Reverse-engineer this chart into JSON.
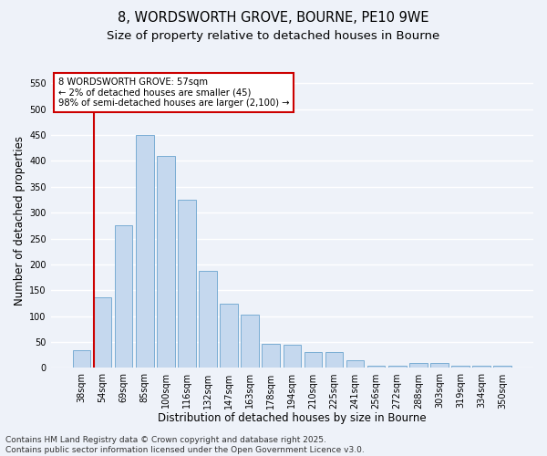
{
  "title_line1": "8, WORDSWORTH GROVE, BOURNE, PE10 9WE",
  "title_line2": "Size of property relative to detached houses in Bourne",
  "xlabel": "Distribution of detached houses by size in Bourne",
  "ylabel": "Number of detached properties",
  "categories": [
    "38sqm",
    "54sqm",
    "69sqm",
    "85sqm",
    "100sqm",
    "116sqm",
    "132sqm",
    "147sqm",
    "163sqm",
    "178sqm",
    "194sqm",
    "210sqm",
    "225sqm",
    "241sqm",
    "256sqm",
    "272sqm",
    "288sqm",
    "303sqm",
    "319sqm",
    "334sqm",
    "350sqm"
  ],
  "values": [
    35,
    137,
    275,
    450,
    410,
    325,
    188,
    125,
    103,
    47,
    45,
    30,
    30,
    15,
    5,
    5,
    10,
    10,
    5,
    4,
    4
  ],
  "bar_color": "#c5d8ee",
  "bar_edge_color": "#7aadd4",
  "highlight_bar_index": 1,
  "highlight_color": "#cc0000",
  "ylim": [
    0,
    570
  ],
  "yticks": [
    0,
    50,
    100,
    150,
    200,
    250,
    300,
    350,
    400,
    450,
    500,
    550
  ],
  "annotation_box_text": "8 WORDSWORTH GROVE: 57sqm\n← 2% of detached houses are smaller (45)\n98% of semi-detached houses are larger (2,100) →",
  "footnote_line1": "Contains HM Land Registry data © Crown copyright and database right 2025.",
  "footnote_line2": "Contains public sector information licensed under the Open Government Licence v3.0.",
  "background_color": "#eef2f9",
  "grid_color": "#ffffff",
  "title_fontsize": 10.5,
  "subtitle_fontsize": 9.5,
  "tick_fontsize": 7,
  "label_fontsize": 8.5,
  "footnote_fontsize": 6.5
}
